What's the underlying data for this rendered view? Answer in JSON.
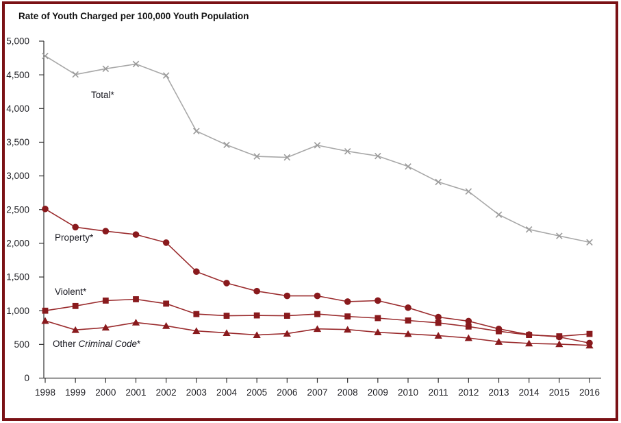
{
  "page": {
    "background": "#ffffff",
    "frame_border_color": "#7a1115"
  },
  "chart_data": {
    "type": "line",
    "title": "Rate of Youth Charged per 100,000 Youth Population",
    "xlabel": "",
    "ylabel": "",
    "ylim": [
      0,
      5000
    ],
    "ytick_step": 500,
    "grid": false,
    "legend": "inline-labels",
    "x": [
      1998,
      1999,
      2000,
      2001,
      2002,
      2003,
      2004,
      2005,
      2006,
      2007,
      2008,
      2009,
      2010,
      2011,
      2012,
      2013,
      2014,
      2015,
      2016
    ],
    "x_tick_labels": [
      "1998",
      "1999",
      "2000",
      "2001",
      "2002",
      "2003",
      "2004",
      "2005",
      "2006",
      "2007",
      "2008",
      "2009",
      "2010",
      "2011",
      "2012",
      "2013",
      "2014",
      "2015",
      "2016"
    ],
    "y_tick_labels": [
      "0",
      "500",
      "1,000",
      "1,500",
      "2,000",
      "2,500",
      "3,000",
      "3,500",
      "4,000",
      "4,500",
      "5,000"
    ],
    "series": [
      {
        "name": "Total*",
        "marker": "x",
        "line_color": "#a8a8a8",
        "marker_color": "#9b9b9b",
        "values": [
          4780,
          4505,
          4590,
          4660,
          4490,
          3665,
          3460,
          3290,
          3275,
          3455,
          3365,
          3295,
          3140,
          2910,
          2770,
          2425,
          2205,
          2110,
          2015
        ]
      },
      {
        "name": "Property*",
        "marker": "circle",
        "line_color": "#9a2b2d",
        "marker_color": "#891a1d",
        "values": [
          2510,
          2240,
          2180,
          2130,
          2010,
          1580,
          1410,
          1290,
          1220,
          1220,
          1135,
          1150,
          1045,
          905,
          845,
          730,
          645,
          610,
          520
        ]
      },
      {
        "name": "Violent*",
        "marker": "square",
        "line_color": "#9a2b2d",
        "marker_color": "#891a1d",
        "values": [
          1000,
          1070,
          1150,
          1170,
          1105,
          950,
          925,
          930,
          925,
          950,
          915,
          890,
          855,
          820,
          765,
          695,
          640,
          620,
          655
        ]
      },
      {
        "name": "Other Criminal Code*",
        "marker": "triangle",
        "line_color": "#9a2b2d",
        "marker_color": "#891a1d",
        "values": [
          850,
          715,
          750,
          825,
          775,
          700,
          670,
          640,
          660,
          730,
          720,
          680,
          655,
          630,
          595,
          540,
          515,
          505,
          485
        ]
      }
    ]
  },
  "labels": {
    "total": "Total*",
    "property": "Property*",
    "violent": "Violent*",
    "other_prefix": "Other ",
    "other_italic": "Criminal Code",
    "other_suffix": "*"
  }
}
